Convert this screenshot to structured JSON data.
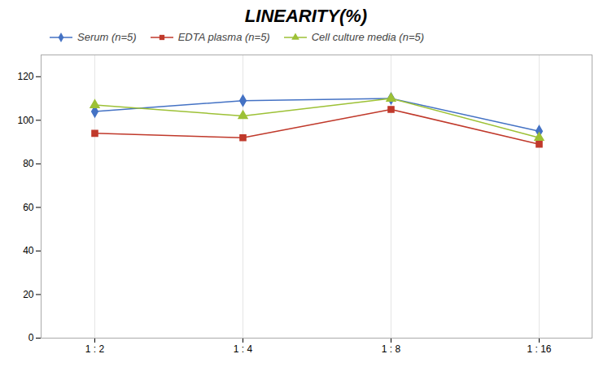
{
  "chart_data": {
    "type": "line",
    "title": "LINEARITY(%)",
    "categories": [
      "1 : 2",
      "1 : 4",
      "1 : 8",
      "1 : 16"
    ],
    "series": [
      {
        "name": "Serum (n=5)",
        "color": "#4472C4",
        "marker": "diamond",
        "values": [
          104,
          109,
          110,
          95
        ]
      },
      {
        "name": "EDTA plasma (n=5)",
        "color": "#C0392B",
        "marker": "square",
        "values": [
          94,
          92,
          105,
          89
        ]
      },
      {
        "name": "Cell culture media (n=5)",
        "color": "#9DC136",
        "marker": "triangle",
        "values": [
          107,
          102,
          110,
          92
        ]
      }
    ],
    "ylim": [
      0,
      130
    ],
    "yticks": [
      0,
      20,
      40,
      60,
      80,
      100,
      120
    ],
    "grid": "x",
    "legend": "upper left"
  }
}
